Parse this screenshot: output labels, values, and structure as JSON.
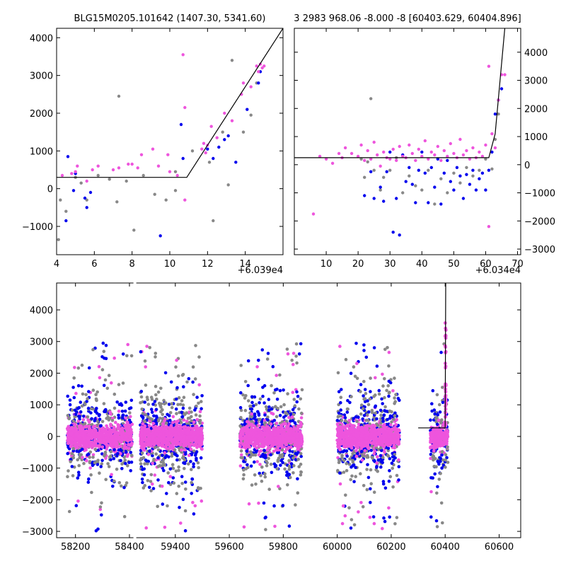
{
  "chart_data": [
    {
      "id": "top-left",
      "type": "scatter",
      "title": "BLG15M0205.101642 (1407.30, 5341.60)",
      "offset_label": "+6.039e4",
      "xlim": [
        4,
        16
      ],
      "ylim": [
        -1750,
        4250
      ],
      "xticks": [
        4,
        6,
        8,
        10,
        12,
        14
      ],
      "yticks": [
        -1000,
        0,
        1000,
        2000,
        3000,
        4000
      ],
      "ytick_side": "left",
      "grid": false,
      "series": [
        {
          "color": "#888888",
          "points": [
            [
              4.1,
              -1350
            ],
            [
              4.2,
              -300
            ],
            [
              4.5,
              -600
            ],
            [
              5.0,
              300
            ],
            [
              5.3,
              150
            ],
            [
              5.6,
              -300
            ],
            [
              6.2,
              350
            ],
            [
              6.8,
              250
            ],
            [
              7.2,
              -350
            ],
            [
              7.3,
              2450
            ],
            [
              7.7,
              200
            ],
            [
              8.1,
              -1100
            ],
            [
              8.6,
              350
            ],
            [
              9.2,
              -150
            ],
            [
              9.8,
              -300
            ],
            [
              10.3,
              -50
            ],
            [
              10.3,
              450
            ],
            [
              11.2,
              1000
            ],
            [
              12.1,
              700
            ],
            [
              12.3,
              -850
            ],
            [
              12.8,
              1500
            ],
            [
              13.1,
              100
            ],
            [
              13.3,
              3400
            ],
            [
              13.9,
              1500
            ],
            [
              14.3,
              1950
            ],
            [
              14.6,
              2800
            ]
          ]
        },
        {
          "color": "#0000ee",
          "points": [
            [
              4.5,
              -850
            ],
            [
              4.6,
              850
            ],
            [
              4.9,
              -50
            ],
            [
              5.0,
              400
            ],
            [
              5.5,
              -250
            ],
            [
              5.6,
              -500
            ],
            [
              5.8,
              -100
            ],
            [
              9.5,
              -1250
            ],
            [
              10.6,
              1700
            ],
            [
              10.7,
              800
            ],
            [
              12.0,
              1050
            ],
            [
              12.3,
              800
            ],
            [
              12.6,
              1100
            ],
            [
              12.9,
              1300
            ],
            [
              13.1,
              1400
            ],
            [
              13.5,
              700
            ],
            [
              14.1,
              2100
            ],
            [
              14.7,
              2800
            ],
            [
              14.8,
              3100
            ]
          ]
        },
        {
          "color": "#ee55dd",
          "points": [
            [
              4.3,
              350
            ],
            [
              4.8,
              400
            ],
            [
              5.0,
              450
            ],
            [
              5.1,
              600
            ],
            [
              5.6,
              200
            ],
            [
              5.9,
              500
            ],
            [
              6.2,
              600
            ],
            [
              7.0,
              500
            ],
            [
              7.3,
              550
            ],
            [
              7.8,
              650
            ],
            [
              8.0,
              650
            ],
            [
              8.3,
              550
            ],
            [
              8.5,
              900
            ],
            [
              9.1,
              1050
            ],
            [
              9.4,
              600
            ],
            [
              9.9,
              900
            ],
            [
              10.0,
              450
            ],
            [
              10.4,
              350
            ],
            [
              10.7,
              3550
            ],
            [
              10.8,
              2150
            ],
            [
              10.8,
              -300
            ],
            [
              11.7,
              1050
            ],
            [
              11.8,
              1200
            ],
            [
              11.9,
              950
            ],
            [
              12.0,
              1150
            ],
            [
              12.2,
              1650
            ],
            [
              12.5,
              1350
            ],
            [
              12.9,
              2000
            ],
            [
              13.3,
              1800
            ],
            [
              13.8,
              2500
            ],
            [
              13.9,
              2800
            ],
            [
              14.3,
              2700
            ],
            [
              14.6,
              3250
            ],
            [
              14.7,
              3100
            ],
            [
              14.8,
              3300
            ],
            [
              14.9,
              3200
            ],
            [
              15.0,
              3250
            ]
          ]
        }
      ],
      "model_line": [
        [
          4,
          300
        ],
        [
          10.9,
          300
        ],
        [
          16,
          4250
        ]
      ]
    },
    {
      "id": "top-right",
      "type": "scatter",
      "title": "3 2983 968.06 -8.000 -8 [60403.629, 60404.896]",
      "offset_label": "+6.034e4",
      "xlim": [
        0,
        71
      ],
      "ylim": [
        -3200,
        4850
      ],
      "xticks": [
        10,
        20,
        30,
        40,
        50,
        60,
        70
      ],
      "yticks": [
        -3000,
        -2000,
        -1000,
        0,
        1000,
        2000,
        3000,
        4000
      ],
      "ytick_side": "right",
      "grid": false,
      "series": [
        {
          "color": "#888888",
          "points": [
            [
              21,
              200
            ],
            [
              22,
              -450
            ],
            [
              23,
              100
            ],
            [
              24,
              2350
            ],
            [
              25,
              -200
            ],
            [
              27,
              -900
            ],
            [
              28,
              -450
            ],
            [
              30,
              -200
            ],
            [
              32,
              250
            ],
            [
              34,
              -1000
            ],
            [
              36,
              -400
            ],
            [
              38,
              -750
            ],
            [
              40,
              -900
            ],
            [
              42,
              -200
            ],
            [
              44,
              -1400
            ],
            [
              46,
              -500
            ],
            [
              48,
              -1000
            ],
            [
              50,
              -300
            ],
            [
              52,
              -650
            ],
            [
              54,
              -100
            ],
            [
              56,
              -400
            ],
            [
              58,
              -200
            ],
            [
              60,
              200
            ],
            [
              62,
              -150
            ],
            [
              63,
              900
            ],
            [
              64,
              1800
            ]
          ]
        },
        {
          "color": "#0000ee",
          "points": [
            [
              22,
              -1100
            ],
            [
              24,
              -250
            ],
            [
              25,
              -1200
            ],
            [
              27,
              -800
            ],
            [
              28,
              -1300
            ],
            [
              29,
              -250
            ],
            [
              30,
              450
            ],
            [
              31,
              -2400
            ],
            [
              32,
              -1200
            ],
            [
              33,
              -2500
            ],
            [
              34,
              350
            ],
            [
              35,
              -600
            ],
            [
              36,
              -100
            ],
            [
              37,
              -700
            ],
            [
              38,
              -1350
            ],
            [
              39,
              -200
            ],
            [
              40,
              450
            ],
            [
              41,
              -300
            ],
            [
              42,
              -1350
            ],
            [
              43,
              -100
            ],
            [
              44,
              -800
            ],
            [
              45,
              200
            ],
            [
              46,
              -1400
            ],
            [
              47,
              -300
            ],
            [
              48,
              150
            ],
            [
              49,
              -600
            ],
            [
              50,
              -900
            ],
            [
              51,
              -100
            ],
            [
              52,
              -400
            ],
            [
              53,
              -1200
            ],
            [
              54,
              -350
            ],
            [
              55,
              -700
            ],
            [
              56,
              -200
            ],
            [
              57,
              -900
            ],
            [
              58,
              -500
            ],
            [
              59,
              -300
            ],
            [
              60,
              -900
            ],
            [
              61,
              -200
            ],
            [
              62,
              450
            ],
            [
              63,
              1800
            ],
            [
              64,
              2300
            ],
            [
              65,
              2700
            ]
          ]
        },
        {
          "color": "#ee55dd",
          "points": [
            [
              6,
              -1750
            ],
            [
              8,
              300
            ],
            [
              10,
              200
            ],
            [
              12,
              50
            ],
            [
              14,
              400
            ],
            [
              15,
              250
            ],
            [
              16,
              600
            ],
            [
              18,
              400
            ],
            [
              20,
              300
            ],
            [
              21,
              700
            ],
            [
              22,
              150
            ],
            [
              23,
              500
            ],
            [
              24,
              200
            ],
            [
              25,
              800
            ],
            [
              26,
              350
            ],
            [
              27,
              -50
            ],
            [
              28,
              450
            ],
            [
              29,
              250
            ],
            [
              30,
              200
            ],
            [
              31,
              550
            ],
            [
              32,
              150
            ],
            [
              33,
              650
            ],
            [
              34,
              300
            ],
            [
              35,
              250
            ],
            [
              36,
              700
            ],
            [
              37,
              400
            ],
            [
              38,
              150
            ],
            [
              39,
              550
            ],
            [
              40,
              300
            ],
            [
              41,
              850
            ],
            [
              42,
              200
            ],
            [
              43,
              450
            ],
            [
              44,
              350
            ],
            [
              45,
              650
            ],
            [
              46,
              150
            ],
            [
              47,
              500
            ],
            [
              48,
              300
            ],
            [
              49,
              750
            ],
            [
              50,
              400
            ],
            [
              51,
              250
            ],
            [
              52,
              900
            ],
            [
              53,
              350
            ],
            [
              54,
              500
            ],
            [
              55,
              200
            ],
            [
              56,
              600
            ],
            [
              57,
              250
            ],
            [
              58,
              450
            ],
            [
              59,
              300
            ],
            [
              60,
              700
            ],
            [
              61,
              -2200
            ],
            [
              61,
              3500
            ],
            [
              62,
              1100
            ],
            [
              63,
              600
            ],
            [
              64,
              2300
            ],
            [
              65,
              3200
            ],
            [
              66,
              3200
            ]
          ]
        }
      ],
      "model_line": [
        [
          0,
          250
        ],
        [
          61,
          250
        ],
        [
          63,
          1100
        ],
        [
          66,
          4850
        ]
      ]
    },
    {
      "id": "bottom",
      "type": "scatter",
      "xlim": [
        58130,
        60680
      ],
      "ylim": [
        -3200,
        4850
      ],
      "xticks": [
        58200,
        58400,
        59400,
        59600,
        59800,
        60000,
        60200,
        60400,
        60600
      ],
      "yticks": [
        -3000,
        -2000,
        -1000,
        0,
        1000,
        2000,
        3000,
        4000
      ],
      "ytick_side": "left",
      "grid": false,
      "seasons": [
        {
          "x": [
            58170,
            58410
          ],
          "n": 750
        },
        {
          "x": [
            59270,
            59500
          ],
          "n": 850
        },
        {
          "x": [
            59640,
            59870
          ],
          "n": 800
        },
        {
          "x": [
            60000,
            60230
          ],
          "n": 800
        },
        {
          "x": [
            60345,
            60410
          ],
          "n": 230
        }
      ],
      "colors": [
        "#888888",
        "#0000ee",
        "#ee55dd"
      ],
      "model_line": [
        [
          60300,
          270
        ],
        [
          60385,
          270
        ],
        [
          60400,
          270
        ],
        [
          60402,
          4850
        ]
      ]
    }
  ]
}
